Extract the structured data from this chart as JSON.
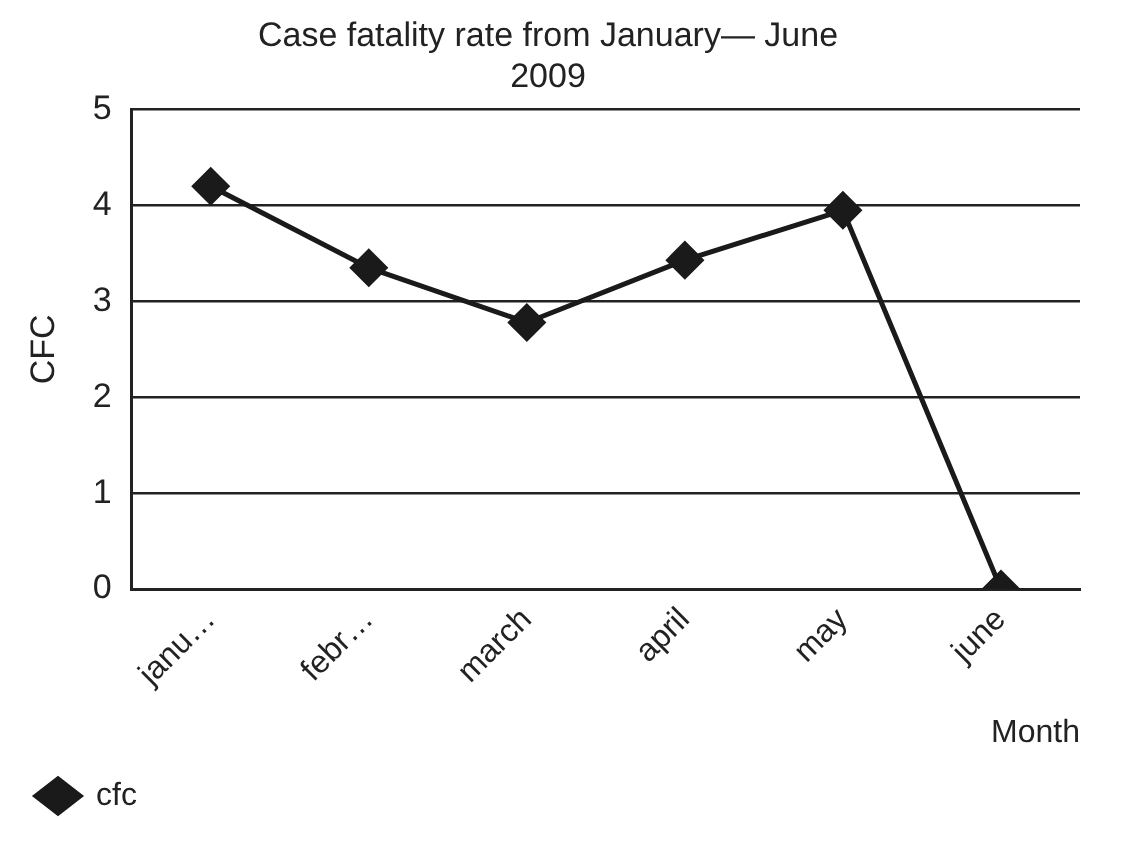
{
  "chart_data": {
    "type": "line",
    "title": "Case fatality rate from January— June 2009",
    "xlabel": "Month",
    "ylabel": "CFC",
    "categories": [
      "janu…",
      "febr…",
      "march",
      "april",
      "may",
      "june"
    ],
    "series": [
      {
        "name": "cfc",
        "color": "#1a1a1a",
        "values": [
          4.2,
          3.35,
          2.78,
          3.43,
          3.95,
          0
        ]
      }
    ],
    "ylim": [
      0,
      5
    ],
    "yticks": [
      0,
      1,
      2,
      3,
      4,
      5
    ],
    "grid": "y",
    "legend": "bottom left",
    "marker": "diamond",
    "line_style": "solid"
  }
}
